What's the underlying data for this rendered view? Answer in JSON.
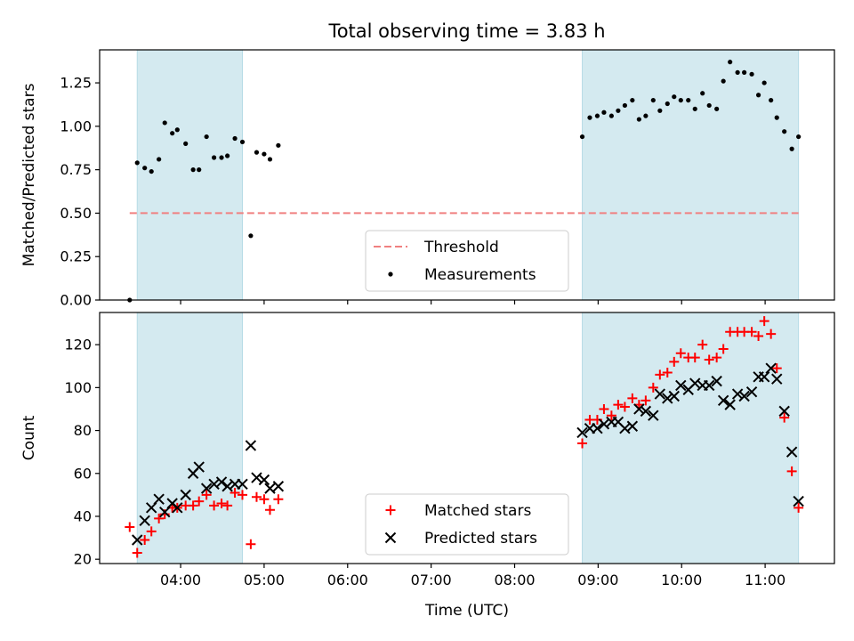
{
  "chart_data": {
    "title": "Total observing time = 3.83 h",
    "xlabel": "Time (UTC)",
    "x_ticks": [
      {
        "t": 4,
        "label": "04:00"
      },
      {
        "t": 5,
        "label": "05:00"
      },
      {
        "t": 6,
        "label": "06:00"
      },
      {
        "t": 7,
        "label": "07:00"
      },
      {
        "t": 8,
        "label": "08:00"
      },
      {
        "t": 9,
        "label": "09:00"
      },
      {
        "t": 10,
        "label": "10:00"
      },
      {
        "t": 11,
        "label": "11:00"
      }
    ],
    "xlim": [
      3.03,
      11.83
    ],
    "shaded_intervals": [
      [
        3.48,
        4.74
      ],
      [
        8.81,
        11.4
      ]
    ],
    "shade_color": "#d4eaf0",
    "panels": [
      {
        "type": "scatter",
        "ylabel": "Matched/Predicted stars",
        "ylim": [
          0.0,
          1.44
        ],
        "y_ticks": [
          "0.00",
          "0.25",
          "0.50",
          "0.75",
          "1.00",
          "1.25"
        ],
        "threshold": {
          "name": "Threshold",
          "value": 0.5,
          "x_range": [
            3.39,
            11.4
          ],
          "color": "#f08080"
        },
        "series": [
          {
            "name": "Measurements",
            "marker": "dot",
            "color": "#000000",
            "points": [
              [
                3.39,
                0.0
              ],
              [
                3.48,
                0.79
              ],
              [
                3.57,
                0.76
              ],
              [
                3.65,
                0.74
              ],
              [
                3.74,
                0.81
              ],
              [
                3.81,
                1.02
              ],
              [
                3.9,
                0.96
              ],
              [
                3.96,
                0.98
              ],
              [
                4.06,
                0.9
              ],
              [
                4.15,
                0.75
              ],
              [
                4.22,
                0.75
              ],
              [
                4.31,
                0.94
              ],
              [
                4.4,
                0.82
              ],
              [
                4.49,
                0.82
              ],
              [
                4.56,
                0.83
              ],
              [
                4.65,
                0.93
              ],
              [
                4.74,
                0.91
              ],
              [
                4.84,
                0.37
              ],
              [
                4.91,
                0.85
              ],
              [
                5.0,
                0.84
              ],
              [
                5.07,
                0.81
              ],
              [
                5.17,
                0.89
              ],
              [
                8.81,
                0.94
              ],
              [
                8.9,
                1.05
              ],
              [
                8.99,
                1.06
              ],
              [
                9.07,
                1.08
              ],
              [
                9.16,
                1.06
              ],
              [
                9.24,
                1.09
              ],
              [
                9.32,
                1.12
              ],
              [
                9.41,
                1.15
              ],
              [
                9.49,
                1.04
              ],
              [
                9.57,
                1.06
              ],
              [
                9.66,
                1.15
              ],
              [
                9.74,
                1.09
              ],
              [
                9.83,
                1.13
              ],
              [
                9.91,
                1.17
              ],
              [
                9.99,
                1.15
              ],
              [
                10.08,
                1.15
              ],
              [
                10.16,
                1.1
              ],
              [
                10.25,
                1.19
              ],
              [
                10.33,
                1.12
              ],
              [
                10.42,
                1.1
              ],
              [
                10.5,
                1.26
              ],
              [
                10.58,
                1.37
              ],
              [
                10.67,
                1.31
              ],
              [
                10.75,
                1.31
              ],
              [
                10.84,
                1.3
              ],
              [
                10.92,
                1.18
              ],
              [
                10.99,
                1.25
              ],
              [
                11.07,
                1.15
              ],
              [
                11.14,
                1.05
              ],
              [
                11.23,
                0.97
              ],
              [
                11.32,
                0.87
              ],
              [
                11.4,
                0.94
              ]
            ]
          }
        ],
        "legend": {
          "position": "lower-center",
          "entries": [
            "Threshold",
            "Measurements"
          ]
        }
      },
      {
        "type": "scatter",
        "ylabel": "Count",
        "ylim": [
          18,
          135
        ],
        "y_ticks": [
          "20",
          "40",
          "60",
          "80",
          "100",
          "120"
        ],
        "series": [
          {
            "name": "Matched stars",
            "marker": "plus",
            "color": "#ff0000",
            "points": [
              [
                3.39,
                35
              ],
              [
                3.48,
                23
              ],
              [
                3.57,
                29
              ],
              [
                3.65,
                33
              ],
              [
                3.74,
                39
              ],
              [
                3.81,
                41
              ],
              [
                3.9,
                44
              ],
              [
                3.96,
                44
              ],
              [
                4.06,
                45
              ],
              [
                4.15,
                45
              ],
              [
                4.22,
                47
              ],
              [
                4.31,
                50
              ],
              [
                4.4,
                45
              ],
              [
                4.49,
                46
              ],
              [
                4.56,
                45
              ],
              [
                4.65,
                51
              ],
              [
                4.74,
                50
              ],
              [
                4.84,
                27
              ],
              [
                4.91,
                49
              ],
              [
                5.0,
                48
              ],
              [
                5.07,
                43
              ],
              [
                5.17,
                48
              ],
              [
                8.81,
                74
              ],
              [
                8.9,
                85
              ],
              [
                8.99,
                85
              ],
              [
                9.07,
                90
              ],
              [
                9.16,
                87
              ],
              [
                9.24,
                92
              ],
              [
                9.32,
                91
              ],
              [
                9.41,
                95
              ],
              [
                9.49,
                92
              ],
              [
                9.57,
                94
              ],
              [
                9.66,
                100
              ],
              [
                9.74,
                106
              ],
              [
                9.83,
                107
              ],
              [
                9.91,
                112
              ],
              [
                9.99,
                116
              ],
              [
                10.08,
                114
              ],
              [
                10.16,
                114
              ],
              [
                10.25,
                120
              ],
              [
                10.33,
                113
              ],
              [
                10.42,
                114
              ],
              [
                10.5,
                118
              ],
              [
                10.58,
                126
              ],
              [
                10.67,
                126
              ],
              [
                10.75,
                126
              ],
              [
                10.84,
                126
              ],
              [
                10.92,
                124
              ],
              [
                10.99,
                131
              ],
              [
                11.07,
                125
              ],
              [
                11.14,
                109
              ],
              [
                11.23,
                86
              ],
              [
                11.32,
                61
              ],
              [
                11.4,
                44
              ]
            ]
          },
          {
            "name": "Predicted stars",
            "marker": "x",
            "color": "#000000",
            "points": [
              [
                3.48,
                29
              ],
              [
                3.57,
                38
              ],
              [
                3.65,
                44
              ],
              [
                3.74,
                48
              ],
              [
                3.81,
                42
              ],
              [
                3.9,
                46
              ],
              [
                3.96,
                44
              ],
              [
                4.06,
                50
              ],
              [
                4.15,
                60
              ],
              [
                4.22,
                63
              ],
              [
                4.31,
                53
              ],
              [
                4.4,
                55
              ],
              [
                4.49,
                56
              ],
              [
                4.56,
                54
              ],
              [
                4.65,
                55
              ],
              [
                4.74,
                55
              ],
              [
                4.84,
                73
              ],
              [
                4.91,
                58
              ],
              [
                5.0,
                57
              ],
              [
                5.07,
                53
              ],
              [
                5.17,
                54
              ],
              [
                8.81,
                79
              ],
              [
                8.9,
                81
              ],
              [
                8.99,
                81
              ],
              [
                9.07,
                83
              ],
              [
                9.16,
                84
              ],
              [
                9.24,
                84
              ],
              [
                9.32,
                81
              ],
              [
                9.41,
                82
              ],
              [
                9.49,
                90
              ],
              [
                9.57,
                89
              ],
              [
                9.66,
                87
              ],
              [
                9.74,
                97
              ],
              [
                9.83,
                95
              ],
              [
                9.91,
                96
              ],
              [
                9.99,
                101
              ],
              [
                10.08,
                99
              ],
              [
                10.16,
                102
              ],
              [
                10.25,
                101
              ],
              [
                10.33,
                101
              ],
              [
                10.42,
                103
              ],
              [
                10.5,
                94
              ],
              [
                10.58,
                92
              ],
              [
                10.67,
                97
              ],
              [
                10.75,
                96
              ],
              [
                10.84,
                98
              ],
              [
                10.92,
                105
              ],
              [
                10.99,
                105
              ],
              [
                11.07,
                109
              ],
              [
                11.14,
                104
              ],
              [
                11.23,
                89
              ],
              [
                11.32,
                70
              ],
              [
                11.4,
                47
              ]
            ]
          }
        ],
        "legend": {
          "position": "lower-center",
          "entries": [
            "Matched stars",
            "Predicted stars"
          ]
        }
      }
    ]
  }
}
